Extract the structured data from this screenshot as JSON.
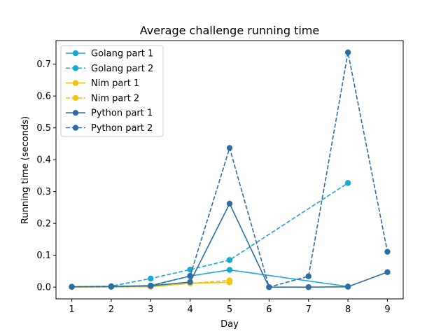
{
  "chart_data": {
    "type": "line",
    "title": "Average challenge running time",
    "xlabel": "Day",
    "ylabel": "Running time (seconds)",
    "xlim": [
      0.6,
      9.4
    ],
    "ylim": [
      -0.037,
      0.774
    ],
    "xticks": [
      1,
      2,
      3,
      4,
      5,
      6,
      7,
      8,
      9
    ],
    "yticks": [
      0.0,
      0.1,
      0.2,
      0.3,
      0.4,
      0.5,
      0.6,
      0.7
    ],
    "ytick_labels": [
      "0.0",
      "0.1",
      "0.2",
      "0.3",
      "0.4",
      "0.5",
      "0.6",
      "0.7"
    ],
    "legend_position": "top-left",
    "grid": false,
    "series": [
      {
        "name": "Golang part 1",
        "color": "#17a9d4",
        "dashed": false,
        "x": [
          1,
          2,
          3,
          4,
          5,
          8
        ],
        "y": [
          0.001,
          0.002,
          0.005,
          0.035,
          0.054,
          0.002
        ]
      },
      {
        "name": "Golang part 2",
        "color": "#17a9d4",
        "dashed": true,
        "x": [
          1,
          2,
          3,
          4,
          5,
          8
        ],
        "y": [
          0.001,
          0.003,
          0.027,
          0.055,
          0.085,
          0.327
        ]
      },
      {
        "name": "Nim part 1",
        "color": "#f5c211",
        "dashed": false,
        "x": [
          1,
          2,
          3,
          4,
          5
        ],
        "y": [
          0.0,
          0.001,
          0.001,
          0.012,
          0.015
        ]
      },
      {
        "name": "Nim part 2",
        "color": "#f5c211",
        "dashed": true,
        "x": [
          1,
          2,
          3,
          4,
          5
        ],
        "y": [
          0.0,
          0.001,
          0.002,
          0.012,
          0.021
        ]
      },
      {
        "name": "Python part 1",
        "color": "#2e6da4",
        "dashed": false,
        "x": [
          1,
          2,
          3,
          4,
          5,
          6,
          7,
          8,
          9
        ],
        "y": [
          0.001,
          0.002,
          0.004,
          0.016,
          0.262,
          0.0,
          0.0,
          0.001,
          0.047
        ]
      },
      {
        "name": "Python part 2",
        "color": "#2e6da4",
        "dashed": true,
        "x": [
          1,
          2,
          3,
          4,
          5,
          6,
          7,
          8,
          9
        ],
        "y": [
          0.001,
          0.001,
          0.004,
          0.035,
          0.437,
          0.0,
          0.034,
          0.737,
          0.111
        ]
      }
    ]
  }
}
